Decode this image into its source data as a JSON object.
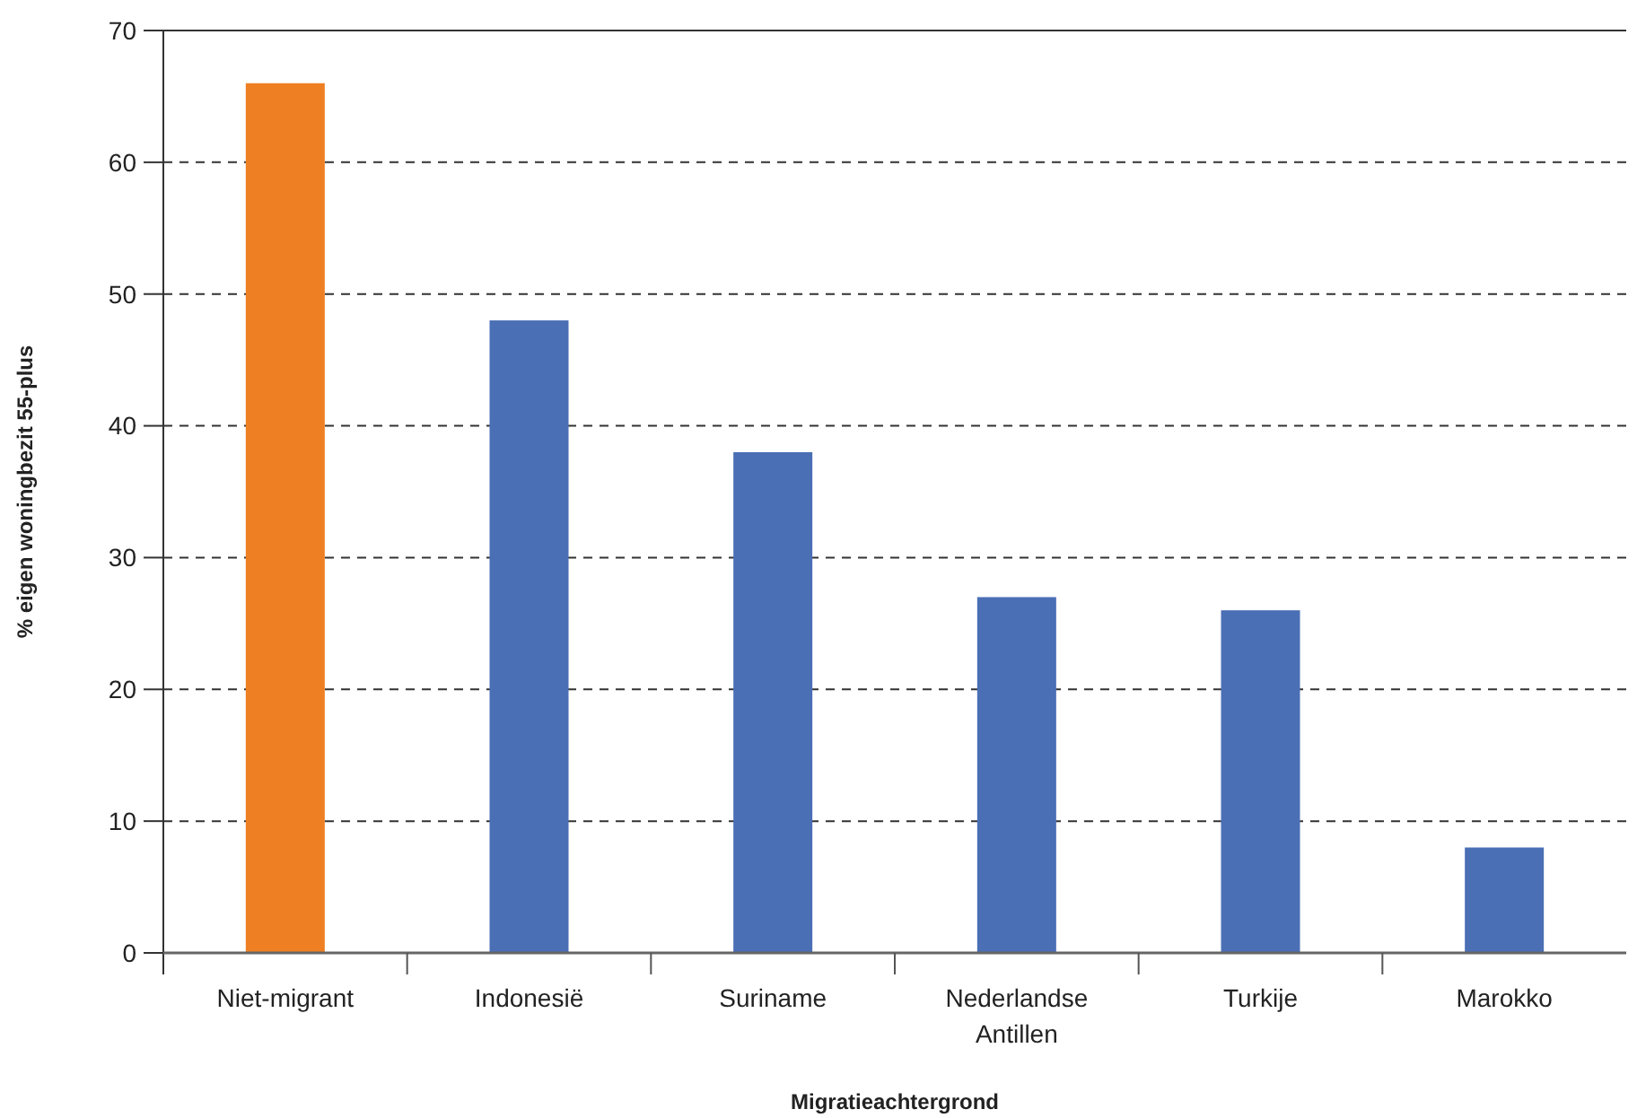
{
  "chart_data": {
    "type": "bar",
    "xlabel": "Migratieachtergrond",
    "ylabel": "% eigen woningbezit 55-plus",
    "categories": [
      "Niet-migrant",
      "Indonesië",
      "Suriname",
      "Nederlandse Antillen",
      "Turkije",
      "Marokko"
    ],
    "values": [
      66,
      48,
      38,
      27,
      26,
      8
    ],
    "colors": [
      "#ee7f22",
      "#4a6fb5",
      "#4a6fb5",
      "#4a6fb5",
      "#4a6fb5",
      "#4a6fb5"
    ],
    "ylim": [
      0,
      70
    ],
    "yticks": [
      0,
      10,
      20,
      30,
      40,
      50,
      60,
      70
    ],
    "grid": "y"
  }
}
